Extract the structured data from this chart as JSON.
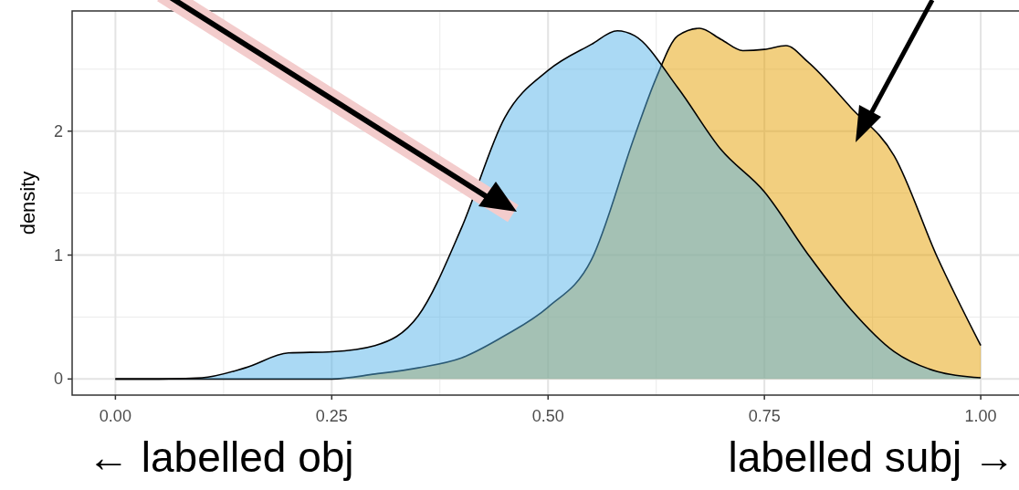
{
  "chart_data": {
    "type": "area",
    "ylabel": "density",
    "xlim": [
      -0.05,
      1.04
    ],
    "ylim": [
      -0.13,
      2.97
    ],
    "xticks": [
      {
        "value": 0,
        "label": "0.00"
      },
      {
        "value": 0.25,
        "label": "0.25"
      },
      {
        "value": 0.5,
        "label": "0.50"
      },
      {
        "value": 0.75,
        "label": "0.75"
      },
      {
        "value": 1,
        "label": "1.00"
      }
    ],
    "yticks": [
      0,
      1,
      2
    ],
    "grid": true,
    "series": [
      {
        "color": "#56b4e9",
        "x": [
          0,
          0.05,
          0.1,
          0.15,
          0.2,
          0.25,
          0.3,
          0.35,
          0.4,
          0.45,
          0.5,
          0.55,
          0.58,
          0.6,
          0.65,
          0.7,
          0.75,
          0.8,
          0.85,
          0.9,
          0.95,
          1
        ],
        "values": [
          0,
          0,
          0.01,
          0.09,
          0.21,
          0.22,
          0.27,
          0.51,
          1.22,
          2.11,
          2.49,
          2.7,
          2.81,
          2.77,
          2.35,
          1.85,
          1.51,
          1.01,
          0.56,
          0.22,
          0.06,
          0.01
        ]
      },
      {
        "color": "#e69f00",
        "x": [
          0,
          0.1,
          0.2,
          0.25,
          0.3,
          0.35,
          0.4,
          0.45,
          0.5,
          0.55,
          0.6,
          0.625,
          0.65,
          0.675,
          0.7,
          0.725,
          0.75,
          0.775,
          0.8,
          0.85,
          0.9,
          0.95,
          1
        ],
        "values": [
          0,
          0,
          0,
          0,
          0.04,
          0.09,
          0.17,
          0.35,
          0.58,
          0.96,
          1.96,
          2.43,
          2.77,
          2.83,
          2.74,
          2.65,
          2.66,
          2.69,
          2.56,
          2.19,
          1.8,
          0.98,
          0.27
        ]
      }
    ],
    "annotations": [
      "← labelled obj",
      "labelled subj →"
    ]
  }
}
